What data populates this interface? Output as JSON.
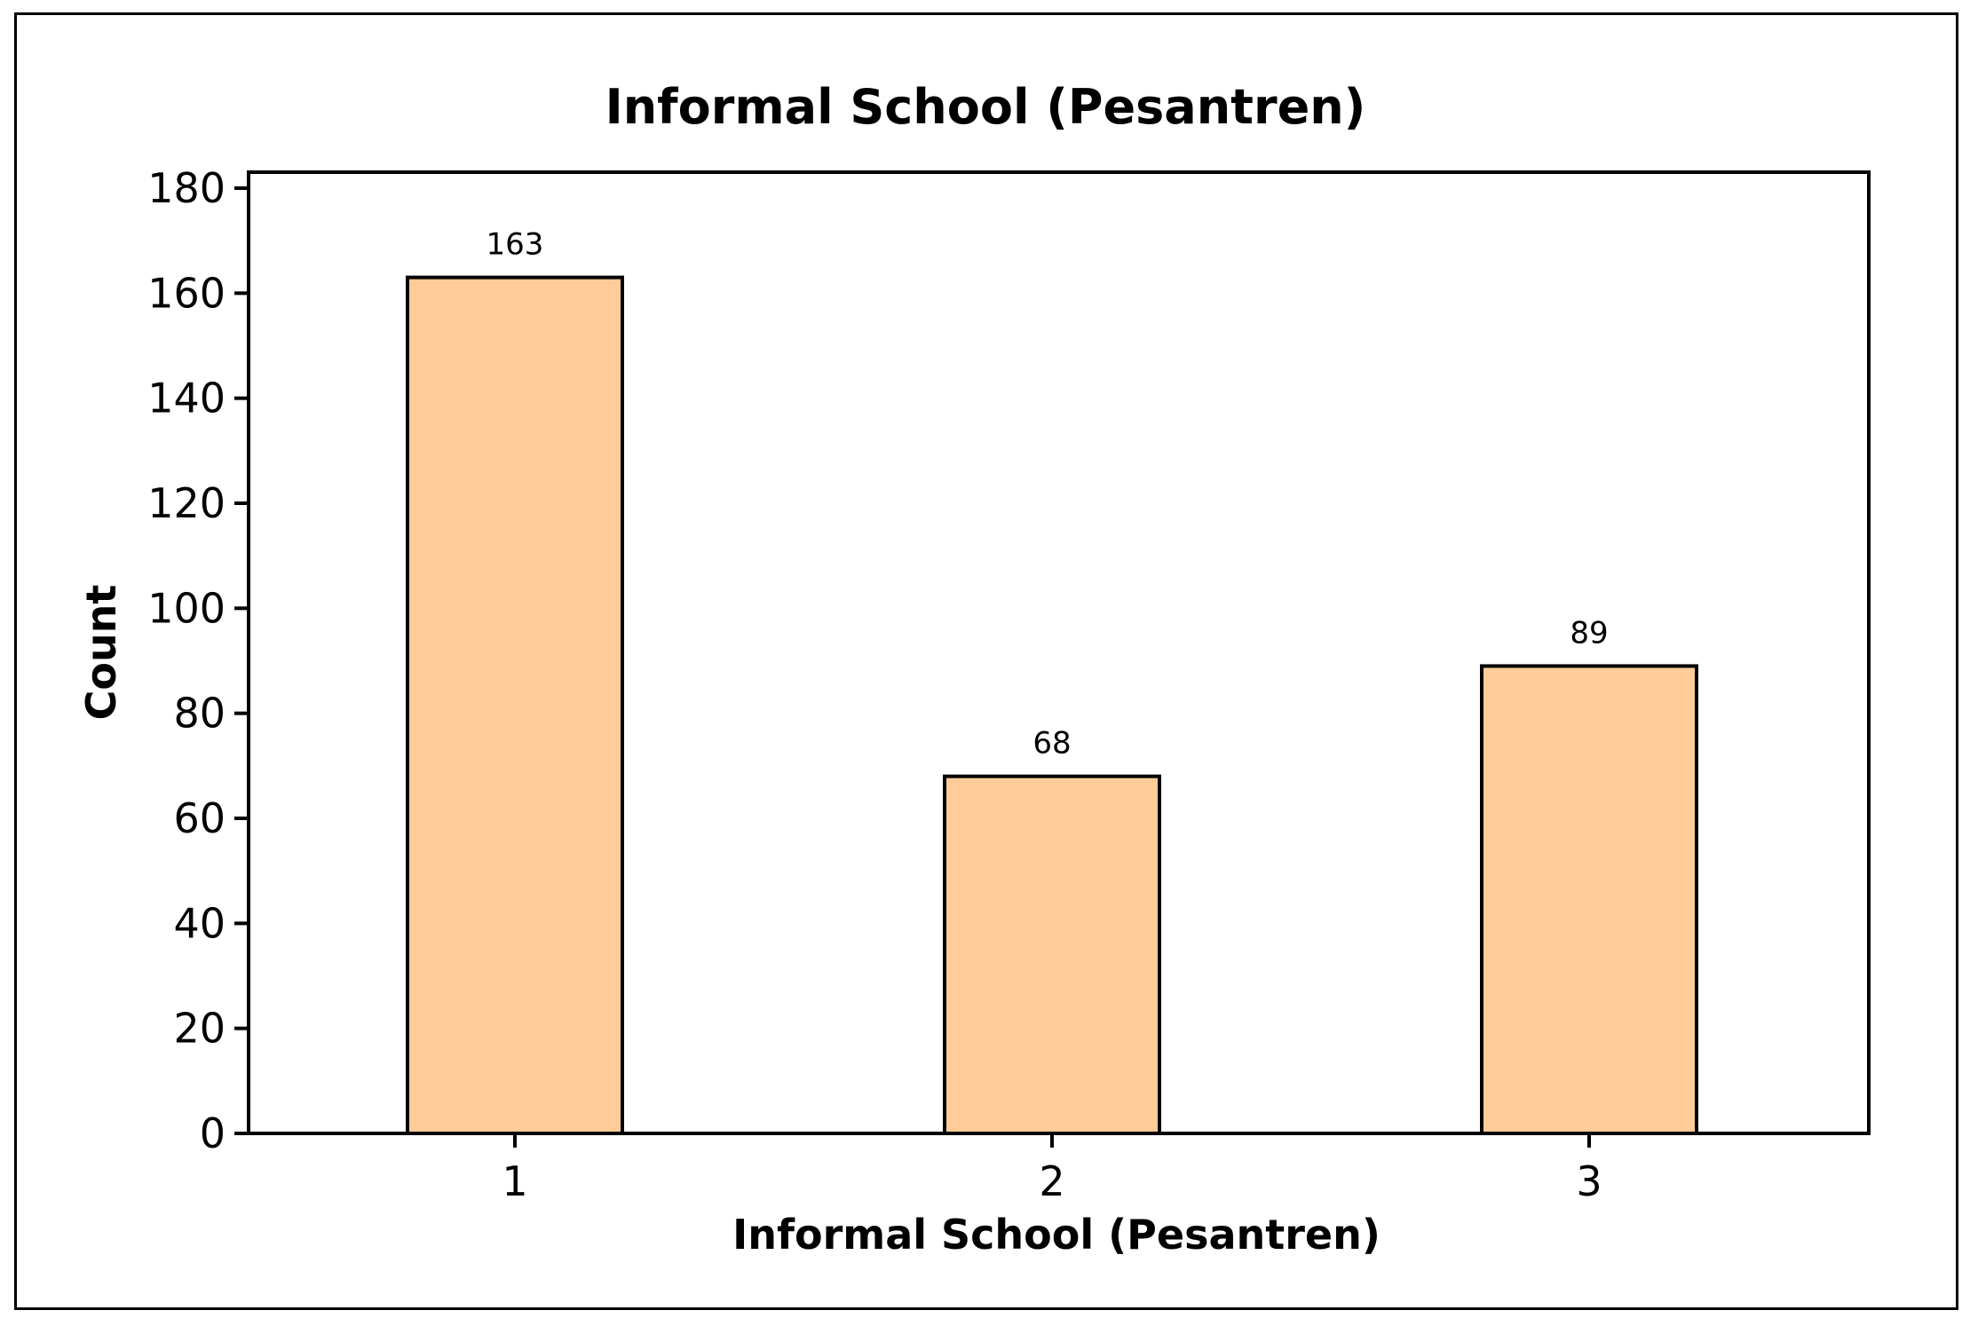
{
  "chart_data": {
    "type": "bar",
    "title": "Informal School (Pesantren)",
    "xlabel": "Informal School (Pesantren)",
    "ylabel": "Count",
    "categories": [
      "1",
      "2",
      "3"
    ],
    "values": [
      163,
      68,
      89
    ],
    "data_labels": [
      "163",
      "68",
      "89"
    ],
    "ylim": [
      0,
      180
    ],
    "yticks": [
      0,
      20,
      40,
      60,
      80,
      100,
      120,
      140,
      160,
      180
    ],
    "ytick_labels": [
      "0",
      "20",
      "40",
      "60",
      "80",
      "100",
      "120",
      "140",
      "160",
      "180"
    ],
    "grid": false,
    "bar_color": "#FFCC99",
    "bar_edge_color": "#000000"
  }
}
